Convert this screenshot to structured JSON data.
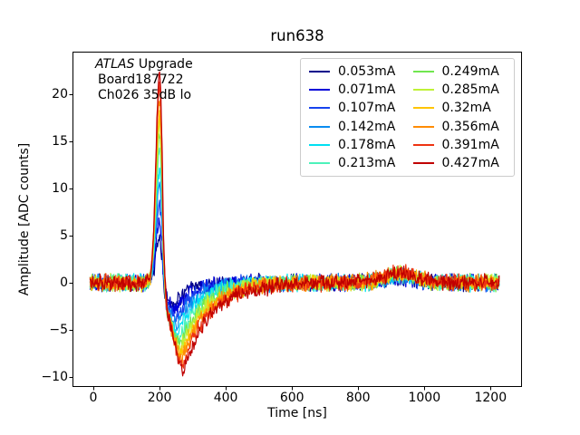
{
  "figure": {
    "annotation": {
      "line1_italic": "ATLAS",
      "line1_rest": " Upgrade",
      "line2": "Board187722",
      "line3": "Ch026 35dB lo"
    }
  },
  "chart_data": {
    "type": "line",
    "title": "run638",
    "xlabel": "Time [ns]",
    "ylabel": "Amplitude [ADC counts]",
    "xlim": [
      -63,
      1295
    ],
    "ylim": [
      -11.08,
      24.47
    ],
    "xticks": [
      0,
      200,
      400,
      600,
      800,
      1000,
      1200
    ],
    "yticks": [
      -10,
      -5,
      0,
      5,
      10,
      15,
      20
    ],
    "grid": false,
    "legend": {
      "position": "upper right",
      "columns": 2,
      "fill_order": "column-major"
    },
    "series": [
      {
        "name": "0.053mA",
        "color": "#00008B",
        "peak_amplitude": 4.5,
        "undershoot_min": -2.2
      },
      {
        "name": "0.071mA",
        "color": "#0000D9",
        "peak_amplitude": 6.4,
        "undershoot_min": -2.9
      },
      {
        "name": "0.107mA",
        "color": "#1743EE",
        "peak_amplitude": 8.4,
        "undershoot_min": -3.7
      },
      {
        "name": "0.142mA",
        "color": "#0A8CF0",
        "peak_amplitude": 10.3,
        "undershoot_min": -4.5
      },
      {
        "name": "0.178mA",
        "color": "#00E0F2",
        "peak_amplitude": 12.2,
        "undershoot_min": -5.2
      },
      {
        "name": "0.213mA",
        "color": "#4DF2BA",
        "peak_amplitude": 14.0,
        "undershoot_min": -5.9
      },
      {
        "name": "0.249mA",
        "color": "#70E64F",
        "peak_amplitude": 15.5,
        "undershoot_min": -6.5
      },
      {
        "name": "0.285mA",
        "color": "#BFF137",
        "peak_amplitude": 16.8,
        "undershoot_min": -7.0
      },
      {
        "name": "0.32mA",
        "color": "#FFC400",
        "peak_amplitude": 18.0,
        "undershoot_min": -7.5
      },
      {
        "name": "0.356mA",
        "color": "#FF8C05",
        "peak_amplitude": 19.4,
        "undershoot_min": -8.1
      },
      {
        "name": "0.391mA",
        "color": "#EE3311",
        "peak_amplitude": 20.8,
        "undershoot_min": -8.6
      },
      {
        "name": "0.427mA",
        "color": "#C00000",
        "peak_amplitude": 22.2,
        "undershoot_min": -9.1
      }
    ],
    "waveform_model": {
      "t_start": -10,
      "t_end": 1226,
      "dt": 2,
      "baseline": 0,
      "noise_amp": 1.05,
      "peak_time": 200,
      "peak_sigma_rise": 11,
      "peak_sigma_fall": 8,
      "undershoot_sigma": 33,
      "undershoot_time_base": 240,
      "undershoot_time_scale": 1.5,
      "recovery_tau_base": 30,
      "recovery_tau_scale": 2.5,
      "bump_time": 925,
      "bump_sigma": 48,
      "bump_ratio": 0.045,
      "bump_base": 0.2
    }
  }
}
